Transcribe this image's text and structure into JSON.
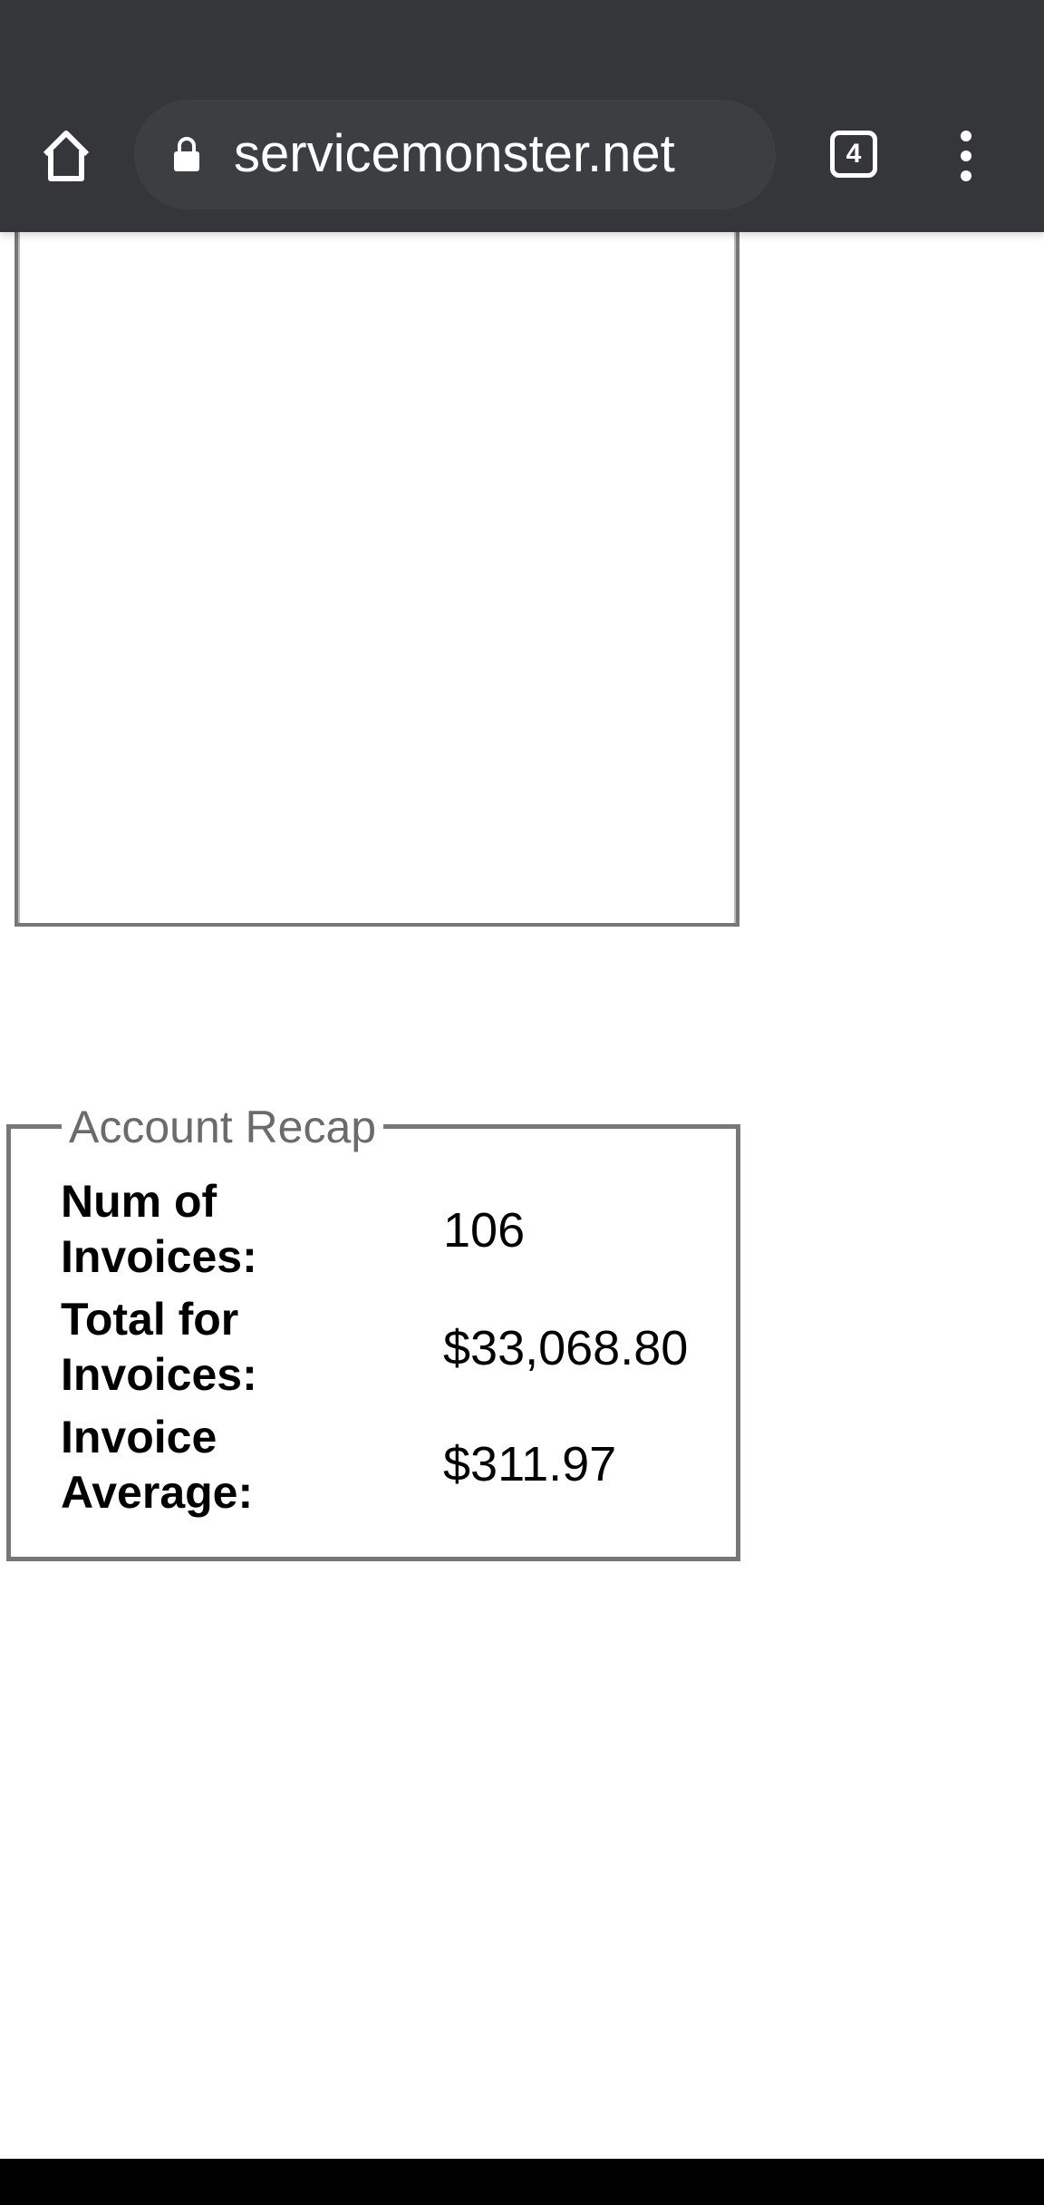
{
  "browser": {
    "url": "servicemonster.net",
    "tab_count": "4",
    "icons": [
      "home-icon",
      "lock-icon",
      "tab-switcher-icon",
      "more-menu-icon"
    ],
    "theme_color": "#35363a"
  },
  "recap": {
    "title": "Account Recap",
    "rows": [
      {
        "label": "Num of Invoices:",
        "value": "106"
      },
      {
        "label": "Total for Invoices:",
        "value": "$33,068.80"
      },
      {
        "label": "Invoice Average:",
        "value": "$311.97"
      }
    ]
  }
}
